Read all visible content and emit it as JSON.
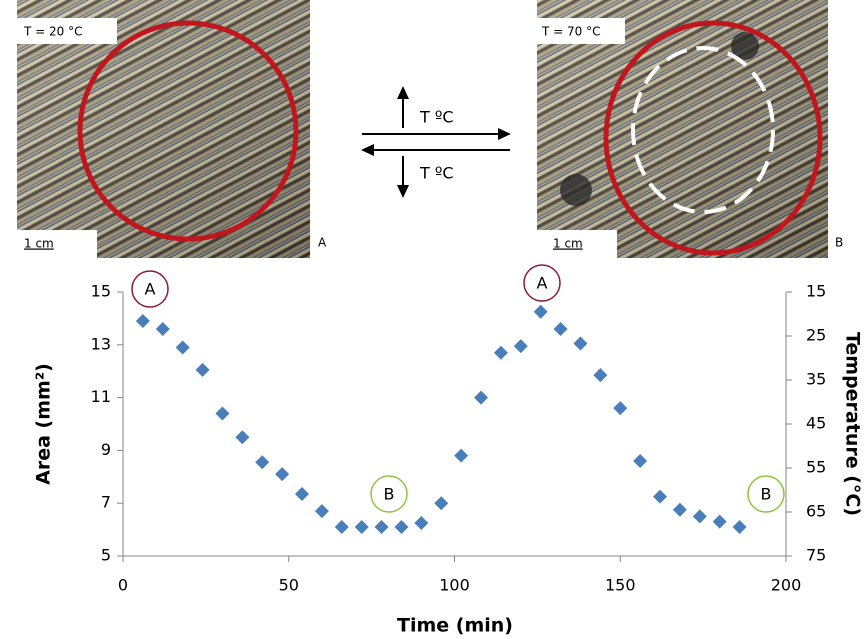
{
  "figure": {
    "panel_a": {
      "temperature": "T = 20 °C",
      "scale": "1 cm",
      "letter": "A"
    },
    "panel_b": {
      "temperature": "T = 70 °C",
      "scale": "1 cm",
      "letter": "B"
    },
    "arrow_up_label": "T ºC",
    "arrow_down_label": "T ºC"
  },
  "chart_data": {
    "type": "scatter",
    "xlabel": "Time (min)",
    "ylabel": "Area (mm²)",
    "y2label": "Temperature (°C)",
    "x": [
      6,
      12,
      18,
      24,
      30,
      36,
      42,
      48,
      54,
      60,
      66,
      72,
      78,
      84,
      90,
      96,
      102,
      108,
      114,
      120,
      126,
      132,
      138,
      144,
      150,
      156,
      162,
      168,
      174,
      180,
      186
    ],
    "values": [
      13.9,
      13.6,
      12.9,
      12.05,
      10.4,
      9.5,
      8.55,
      8.1,
      7.35,
      6.7,
      6.1,
      6.1,
      6.1,
      6.1,
      6.25,
      7.0,
      8.8,
      11.0,
      12.7,
      12.95,
      14.25,
      13.6,
      13.05,
      11.85,
      10.6,
      8.6,
      7.25,
      6.75,
      6.5,
      6.3,
      6.1
    ],
    "color": "#4a7ebb",
    "marker": "diamond",
    "xlim": [
      0,
      200
    ],
    "xticks": [
      0,
      50,
      100,
      150,
      200
    ],
    "ylim": [
      5,
      15
    ],
    "yticks": [
      5,
      7,
      9,
      11,
      13,
      15
    ],
    "y2lim": [
      75,
      15
    ],
    "y2ticks": [
      15,
      25,
      35,
      45,
      55,
      65,
      75
    ],
    "grid": false,
    "annotations": [
      {
        "text": "A",
        "color": "#8b1a3a"
      },
      {
        "text": "B",
        "color": "#8cc63f"
      },
      {
        "text": "A",
        "color": "#8b1a3a"
      },
      {
        "text": "B",
        "color": "#8cc63f"
      }
    ]
  }
}
